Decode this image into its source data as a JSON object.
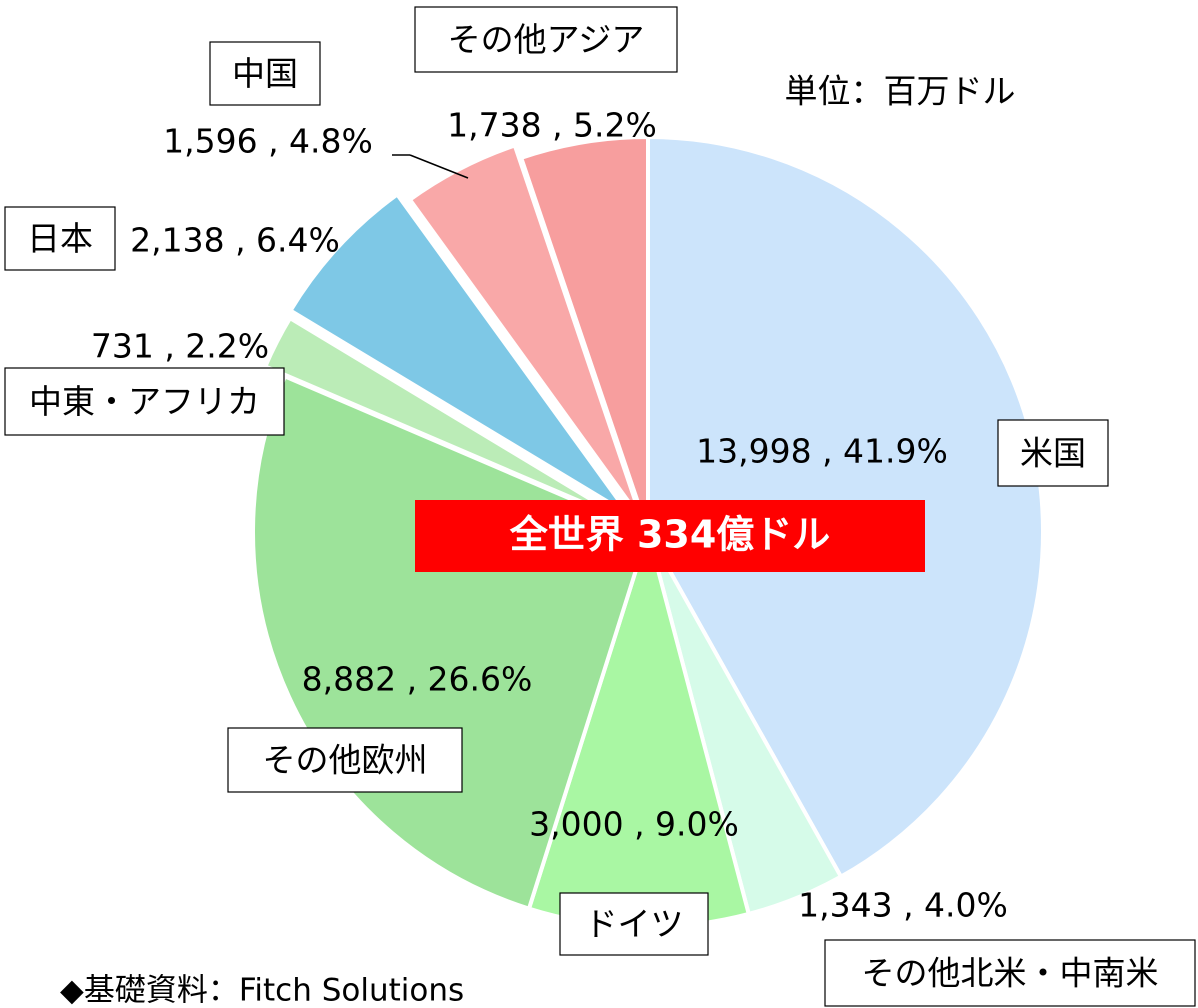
{
  "chart_data": {
    "type": "pie",
    "title": "全世界 334億ドル",
    "unit_note": "単位：百万ドル",
    "source": "◆基礎資料：Fitch Solutions",
    "categories": [
      "米国",
      "その他北米・中南米",
      "ドイツ",
      "その他欧州",
      "中東・アフリカ",
      "日本",
      "中国",
      "その他アジア"
    ],
    "values": [
      13998,
      1343,
      3000,
      8882,
      731,
      2138,
      1596,
      1738
    ],
    "value_labels": [
      "13,998 , 41.9%",
      "1,343 , 4.0%",
      "3,000 , 9.0%",
      "8,882 , 26.6%",
      "731 , 2.2%",
      "2,138 , 6.4%",
      "1,596 , 4.8%",
      "1,738 , 5.2%"
    ],
    "colors": [
      "#cce4fb",
      "#d6fbe9",
      "#a9f7a3",
      "#9de39a",
      "#bbecb7",
      "#7ec8e6",
      "#f9a8a8",
      "#f79e9e"
    ]
  }
}
